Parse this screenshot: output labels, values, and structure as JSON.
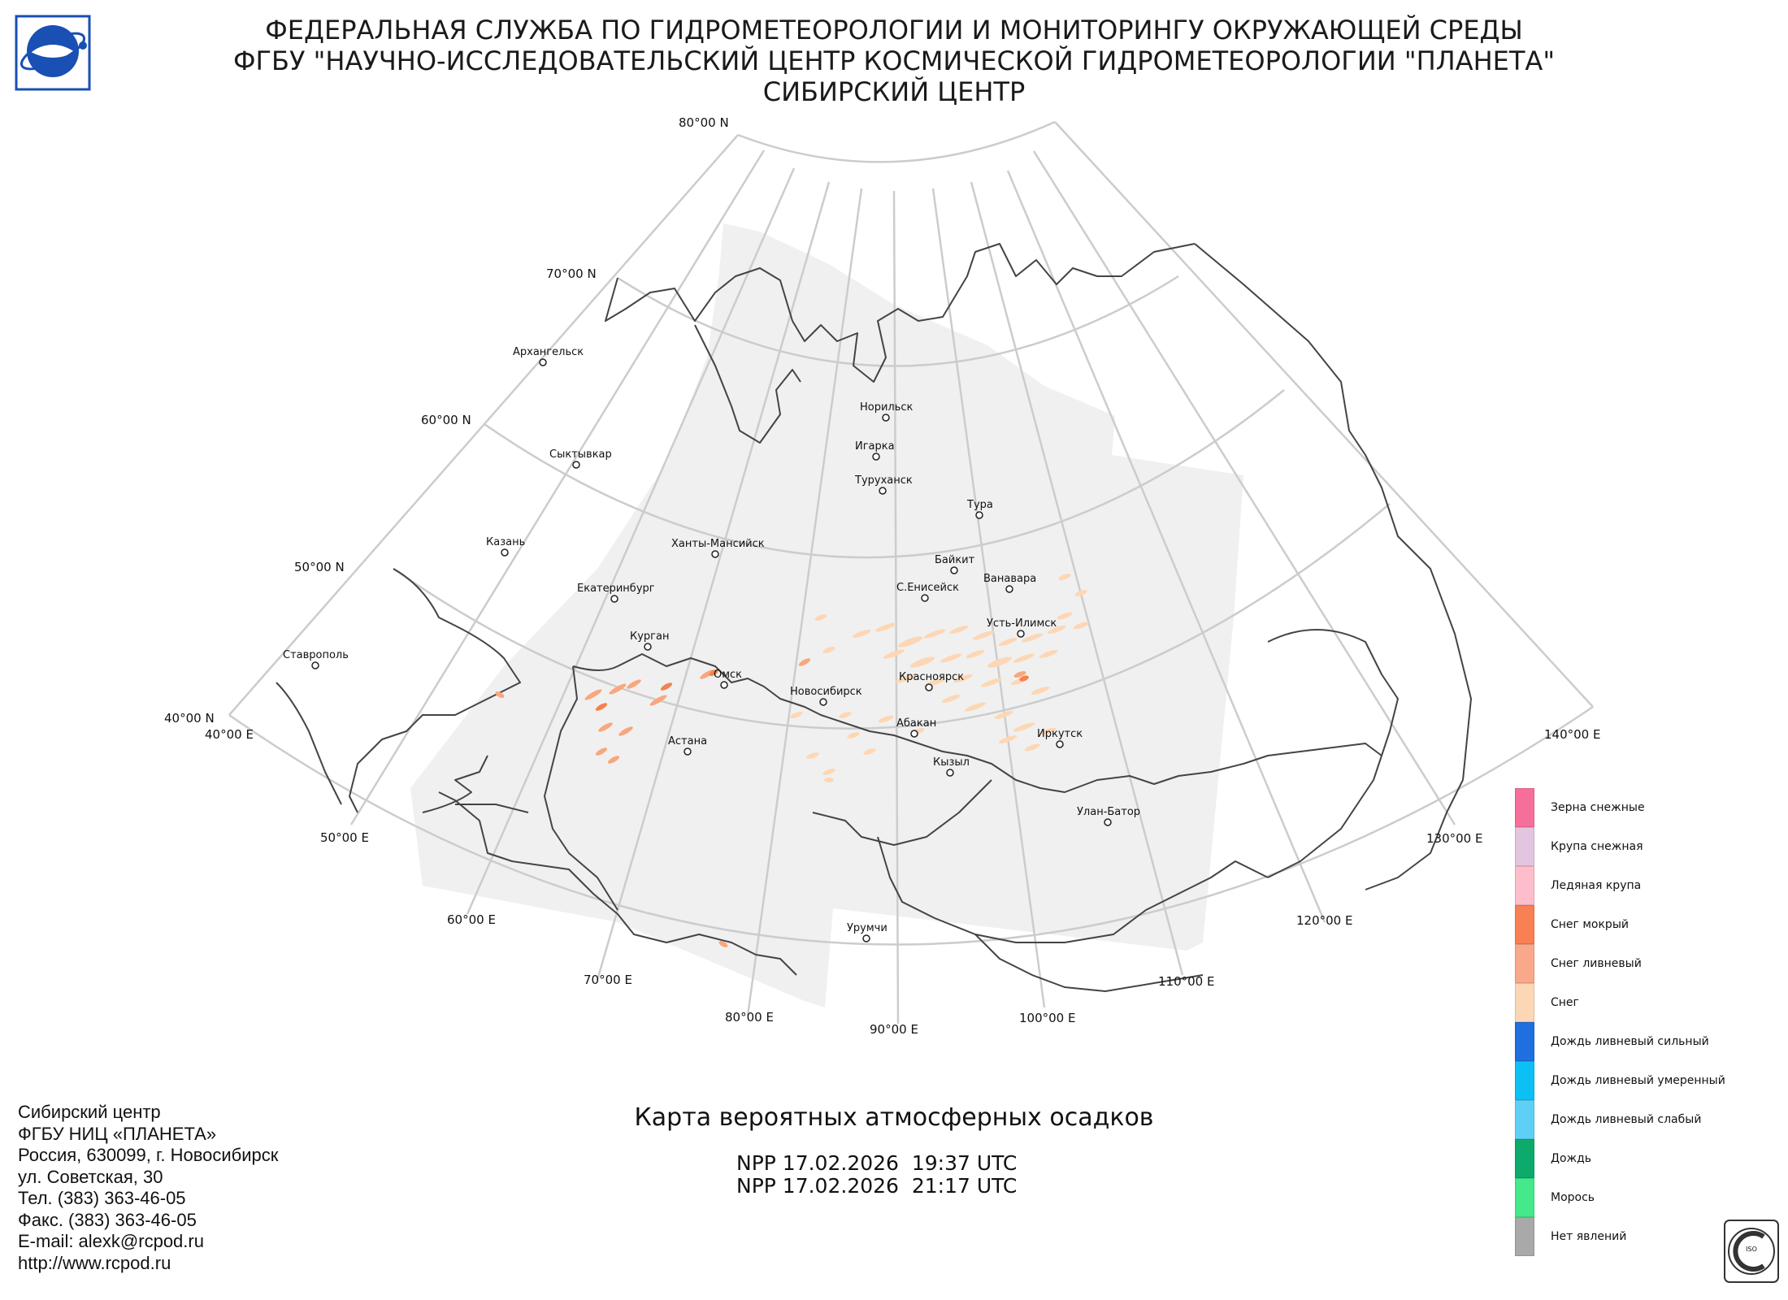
{
  "header": {
    "line1": "ФЕДЕРАЛЬНАЯ СЛУЖБА ПО ГИДРОМЕТЕОРОЛОГИИ И МОНИТОРИНГУ ОКРУЖАЮЩЕЙ СРЕДЫ",
    "line2": "ФГБУ \"НАУЧНО-ИССЛЕДОВАТЕЛЬСКИЙ ЦЕНТР КОСМИЧЕСКОЙ ГИДРОМЕТЕОРОЛОГИИ \"ПЛАНЕТА\"",
    "line3": "СИБИРСКИЙ ЦЕНТР"
  },
  "map": {
    "title": "Карта вероятных атмосферных осадков",
    "passes": [
      "NPP 17.02.2026  19:37 UTC",
      "NPP 17.02.2026  21:17 UTC"
    ],
    "lat_labels": [
      "80°00 N",
      "70°00 N",
      "60°00 N",
      "50°00 N",
      "40°00 N"
    ],
    "lon_labels": [
      "40°00 E",
      "50°00 E",
      "60°00 E",
      "70°00 E",
      "80°00 E",
      "90°00 E",
      "100°00 E",
      "110°00 E",
      "120°00 E",
      "130°00 E",
      "140°00 E"
    ],
    "cities": [
      "Архангельск",
      "Сыктывкар",
      "Казань",
      "Ставрополь",
      "Екатеринбург",
      "Курган",
      "Ханты-Мансийск",
      "Омск",
      "Астана",
      "Новосибирск",
      "Норильск",
      "Игарка",
      "Туруханск",
      "Тура",
      "Байкит",
      "С.Енисейск",
      "Ванавара",
      "Усть-Илимск",
      "Красноярск",
      "Абакан",
      "Кызыл",
      "Иркутск",
      "Улан-Батор",
      "Урумчи"
    ],
    "colors": {
      "graticule": "#cccccc",
      "coast": "#444444",
      "coverage": "#f0f0f0",
      "snow": "#fdd7b5",
      "snow_shower": "#f8a77e",
      "wet_snow": "#f4814e"
    }
  },
  "legend": {
    "items": [
      {
        "label": "Зерна снежные",
        "color": "#f56f9a"
      },
      {
        "label": "Крупа снежная",
        "color": "#e2c5df"
      },
      {
        "label": "Ледяная крупа",
        "color": "#fdbdcb"
      },
      {
        "label": "Снег мокрый",
        "color": "#f98052"
      },
      {
        "label": "Снег ливневый",
        "color": "#f9a98a"
      },
      {
        "label": "Снег",
        "color": "#fdd7b5"
      },
      {
        "label": "Дождь ливневый сильный",
        "color": "#1f6fe0"
      },
      {
        "label": "Дождь ливневый умеренный",
        "color": "#0cc0f3"
      },
      {
        "label": "Дождь ливневый слабый",
        "color": "#5fd0f5"
      },
      {
        "label": "Дождь",
        "color": "#0dab6b"
      },
      {
        "label": "Морось",
        "color": "#43e98a"
      },
      {
        "label": "Нет явлений",
        "color": "#a9a9a9"
      }
    ]
  },
  "contact": {
    "lines": [
      "Сибирский центр",
      "ФГБУ НИЦ «ПЛАНЕТА»",
      "Россия, 630099, г. Новосибирск",
      "ул. Советская, 30",
      "Тел. (383) 363-46-05",
      "Факс. (383) 363-46-05",
      "E-mail: alexk@rcpod.ru",
      "http://www.rcpod.ru"
    ]
  },
  "cert": {
    "text": "ИСО 9001 -2015"
  }
}
